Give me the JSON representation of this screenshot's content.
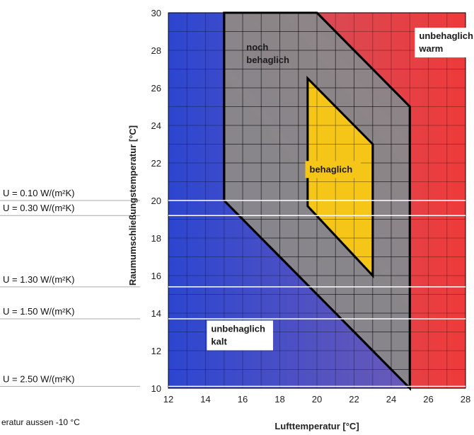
{
  "chart_data": {
    "type": "area",
    "xlabel": "Lufttemperatur [°C]",
    "ylabel": "Raumumschließungstemperatur [°C]",
    "xlim": [
      12,
      28
    ],
    "ylim": [
      10,
      30
    ],
    "x_ticks": [
      12,
      14,
      16,
      18,
      20,
      22,
      24,
      26,
      28
    ],
    "y_ticks": [
      10,
      12,
      14,
      16,
      18,
      20,
      22,
      24,
      26,
      28,
      30
    ],
    "grid": true,
    "zones": [
      {
        "label_lines": [
          "unbehaglich",
          "warm"
        ],
        "color": "#e83a3a",
        "label_at": [
          25.5,
          28.6
        ]
      },
      {
        "label_lines": [
          "noch",
          "behaglich"
        ],
        "color": "#8a8a8a",
        "polygon": [
          [
            15,
            30
          ],
          [
            20,
            30
          ],
          [
            25,
            25
          ],
          [
            25,
            10
          ],
          [
            15,
            20
          ]
        ],
        "label_at": [
          16.2,
          28.0
        ]
      },
      {
        "label_lines": [
          "behaglich"
        ],
        "color": "#f5c518",
        "polygon": [
          [
            19.5,
            26.5
          ],
          [
            23,
            23
          ],
          [
            23,
            16
          ],
          [
            19.5,
            19.7
          ]
        ],
        "label_at": [
          19.6,
          21.5
        ]
      },
      {
        "label_lines": [
          "unbehaglich",
          "kalt"
        ],
        "color": "#2f4fd6",
        "label_at": [
          14.3,
          13.0
        ]
      }
    ],
    "u_lines": [
      {
        "label": "U = 0.10 W/(m²K)",
        "y": 20.0
      },
      {
        "label": "U = 0.30 W/(m²K)",
        "y": 19.2
      },
      {
        "label": "U = 1.30 W/(m²K)",
        "y": 15.4
      },
      {
        "label": "U = 1.50 W/(m²K)",
        "y": 13.7
      },
      {
        "label": "U = 2.50 W/(m²K)",
        "y": 10.1
      }
    ],
    "note": "eratur aussen -10 °C"
  }
}
